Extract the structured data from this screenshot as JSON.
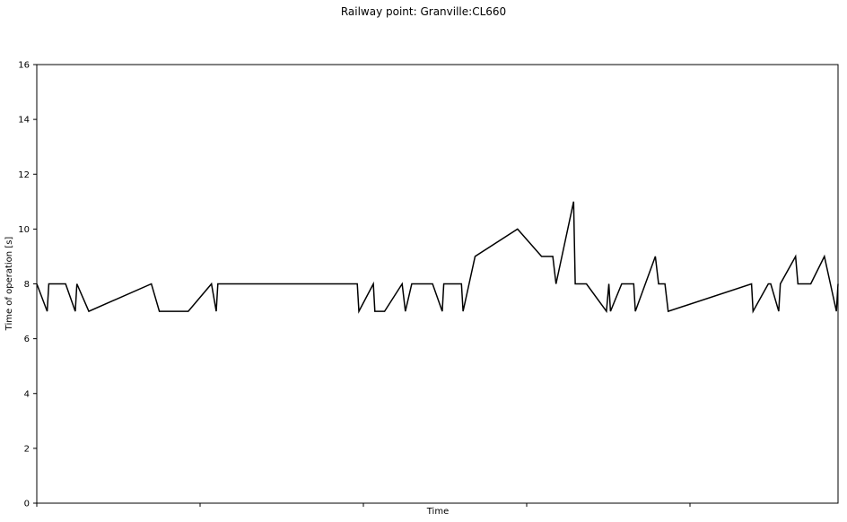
{
  "chart_data": {
    "type": "line",
    "title": "Railway point: Granville:CL660",
    "xlabel": "Time",
    "ylabel": "Time of operation [s]",
    "ylim": [
      0,
      16
    ],
    "yticks": [
      0,
      2,
      4,
      6,
      8,
      10,
      12,
      14,
      16
    ],
    "xlim": [
      0,
      100
    ],
    "x_tick_count": 6,
    "grid": false,
    "line_color": "#000000",
    "series": [
      {
        "x": [
          0,
          1.3,
          1.5,
          3.6,
          4.8,
          5.0,
          6.5,
          14.3,
          15.3,
          18.9,
          21.8,
          22.4,
          22.6,
          40.0,
          40.2,
          42.0,
          42.2,
          43.4,
          45.6,
          46.0,
          46.8,
          49.4,
          50.6,
          50.8,
          53.0,
          53.2,
          54.7,
          60.0,
          63.0,
          64.4,
          64.8,
          67.0,
          67.2,
          68.6,
          71.1,
          71.4,
          71.6,
          73.0,
          74.5,
          74.7,
          77.2,
          77.6,
          78.4,
          78.8,
          89.2,
          89.4,
          91.3,
          91.6,
          92.6,
          92.8,
          94.7,
          95.0,
          96.6,
          98.3,
          99.8,
          100
        ],
        "y": [
          8,
          7,
          8,
          8,
          7,
          8,
          7,
          8,
          7,
          7,
          8,
          7,
          8,
          8,
          7,
          8,
          7,
          7,
          8,
          7,
          8,
          8,
          7,
          8,
          8,
          7,
          9,
          10,
          9,
          9,
          8,
          11,
          8,
          8,
          7,
          8,
          7,
          8,
          8,
          7,
          9,
          8,
          8,
          7,
          8,
          7,
          8,
          8,
          7,
          8,
          9,
          8,
          8,
          9,
          7,
          8
        ]
      }
    ]
  }
}
